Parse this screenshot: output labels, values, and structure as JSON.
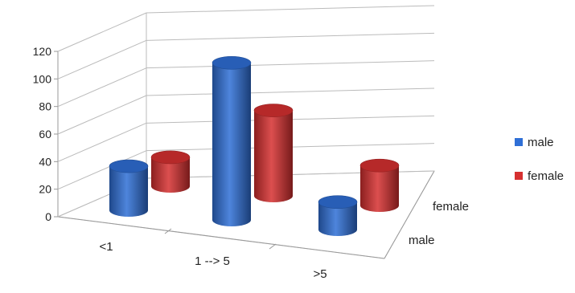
{
  "chart_data": {
    "type": "bar",
    "categories": [
      "<1",
      "1 --> 5",
      ">5"
    ],
    "series": [
      {
        "name": "male",
        "values": [
          32,
          114,
          20
        ],
        "color": "#2f6fd6"
      },
      {
        "name": "female",
        "values": [
          21,
          62,
          29
        ],
        "color": "#d63030"
      }
    ],
    "depth_labels": [
      "male",
      "female"
    ],
    "ylim": [
      0,
      120
    ],
    "yticks": [
      "0",
      "20",
      "40",
      "60",
      "80",
      "100",
      "120"
    ],
    "grid": true,
    "legend_position": "right",
    "bar_shape": "cylinder",
    "three_d": true
  }
}
